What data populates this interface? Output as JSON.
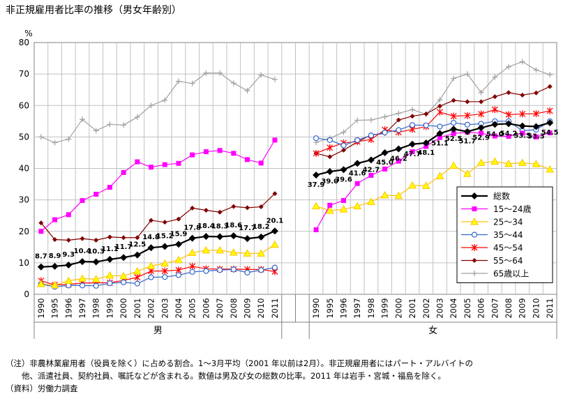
{
  "title": "非正規雇用者比率の推移（男女年齢別）",
  "notes": [
    "（注）非農林業雇用者（役員を除く）に占める割合。1～3月平均（2001 年以前は2月）。非正規雇用者にはパート・アルバイトの",
    "　　他、派遣社員、契約社員、嘱託などが含まれる。数値は男及び女の総数の比率。2011 年は岩手・宮城・福島を除く。",
    "（資料）労働力調査"
  ],
  "colors": {
    "total": "#000000",
    "a15_24": "#ff00ff",
    "a25_34": "#ffc000",
    "a35_44": "#3366cc",
    "a45_54": "#ff0000",
    "a55_64": "#800000",
    "a65": "#a0a0a0",
    "grid": "#c0c0c0"
  },
  "chart_data": {
    "type": "line",
    "ylabel": "%",
    "ylim": [
      0,
      80
    ],
    "yticks": [
      0,
      10,
      20,
      30,
      40,
      50,
      60,
      70,
      80
    ],
    "legend_position": "right",
    "groups": [
      {
        "label": "男",
        "years": [
          "1990",
          "1995",
          "1996",
          "1997",
          "1998",
          "1999",
          "2000",
          "2001",
          "2002",
          "2003",
          "2004",
          "2005",
          "2006",
          "2007",
          "2008",
          "2009",
          "2010",
          "2011"
        ],
        "series": [
          {
            "key": "total",
            "name": "総数",
            "values": [
              8.7,
              8.9,
              9.3,
              10.4,
              10.3,
              11.1,
              11.7,
              12.5,
              14.8,
              15.2,
              15.9,
              17.8,
              18.4,
              18.3,
              18.6,
              17.7,
              18.2,
              20.1
            ],
            "labels": [
              "8.7",
              "8.9",
              "9.3",
              "10.4",
              "10.3",
              "11.1",
              "11.7",
              "12.5",
              "14.8",
              "15.2",
              "15.9",
              "17.8",
              "18.4",
              "18.3",
              "18.6",
              "17.7",
              "18.2",
              "20.1"
            ]
          },
          {
            "key": "a15_24",
            "name": "15～24歳",
            "values": [
              20,
              23.7,
              25.3,
              29.8,
              31.8,
              34,
              38.7,
              42.1,
              40.4,
              41.2,
              41.6,
              44.3,
              45.3,
              45.7,
              44.8,
              42.8,
              41.7,
              49
            ]
          },
          {
            "key": "a25_34",
            "name": "25～34",
            "values": [
              3.3,
              2.9,
              4.3,
              5,
              4.8,
              6,
              5.8,
              7.3,
              9,
              9.8,
              10.9,
              13.2,
              14,
              14,
              13.3,
              13,
              13,
              15.8
            ]
          },
          {
            "key": "a35_44",
            "name": "35～44",
            "values": [
              3.2,
              2.4,
              2.8,
              2.8,
              2.7,
              3.5,
              3.8,
              3.4,
              5.4,
              5.5,
              6.1,
              7.1,
              7.4,
              7.7,
              7.9,
              6.9,
              7.7,
              8.5
            ]
          },
          {
            "key": "a45_54",
            "name": "45～54",
            "values": [
              4.3,
              3,
              3.1,
              3.6,
              3.6,
              3.7,
              4.4,
              5.4,
              7.4,
              7.4,
              7.7,
              8.9,
              8.1,
              8,
              8,
              7.9,
              7.9,
              7.2
            ]
          },
          {
            "key": "a55_64",
            "name": "55～64",
            "values": [
              22.7,
              17.4,
              17.2,
              17.7,
              17.2,
              18.2,
              18,
              18,
              23.5,
              22.9,
              23.9,
              27.4,
              26.7,
              26.1,
              27.9,
              27.5,
              27.8,
              32
            ]
          },
          {
            "key": "a65",
            "name": "65歳以上",
            "values": [
              50,
              48.2,
              49.3,
              55.6,
              52,
              54,
              53.8,
              56.3,
              60,
              61.7,
              67.7,
              67,
              70.3,
              70.3,
              67.1,
              64.7,
              69.7,
              68.3
            ]
          }
        ]
      },
      {
        "label": "女",
        "years": [
          "1990",
          "1995",
          "1996",
          "1997",
          "1998",
          "1999",
          "2000",
          "2001",
          "2002",
          "2003",
          "2004",
          "2005",
          "2006",
          "2007",
          "2008",
          "2009",
          "2010",
          "2011"
        ],
        "series": [
          {
            "key": "total",
            "name": "総数",
            "values": [
              37.9,
              39,
              39.6,
              41.6,
              42.7,
              45,
              46.2,
              47.7,
              48.1,
              51.1,
              52.5,
              51.7,
              52.9,
              54,
              54.2,
              53.5,
              53.3,
              54.5
            ],
            "labels": [
              "37.9",
              "39.0",
              "39.6",
              "41.6",
              "42.7",
              "45.0",
              "46.2",
              "47.7",
              "48.1",
              "51.1",
              "52.5",
              "51.7",
              "52.9",
              "54.0",
              "54.2",
              "53.5",
              "53.3",
              "54.5"
            ]
          },
          {
            "key": "a15_24",
            "name": "15～24歳",
            "values": [
              20.5,
              28.3,
              29.8,
              35.2,
              37.8,
              39.8,
              42.3,
              45.3,
              47,
              49.8,
              51.1,
              51.5,
              51.2,
              50.3,
              50.2,
              51.2,
              50,
              51.3
            ]
          },
          {
            "key": "a25_34",
            "name": "25～34",
            "values": [
              28,
              26.6,
              27,
              28,
              29.4,
              31.5,
              31.3,
              34.6,
              34.5,
              37.6,
              40.9,
              38.3,
              41.8,
              42.2,
              41.5,
              41.8,
              41.4,
              39.7
            ]
          },
          {
            "key": "a35_44",
            "name": "35～44",
            "values": [
              49.6,
              49,
              47.3,
              49,
              50.5,
              51.4,
              52.2,
              53.8,
              53.7,
              53.3,
              54.5,
              53.9,
              54.2,
              55,
              55,
              52,
              52.3,
              55
            ]
          },
          {
            "key": "a45_54",
            "name": "45～54",
            "values": [
              44.8,
              46.6,
              48.1,
              48.5,
              49.2,
              52.3,
              51.5,
              52.4,
              53.3,
              57.9,
              56.6,
              56.8,
              57.3,
              58.7,
              57.1,
              57.3,
              57.4,
              58.3
            ]
          },
          {
            "key": "a55_64",
            "name": "55～64",
            "values": [
              44.8,
              43.7,
              45.8,
              48.4,
              50.7,
              51.1,
              55.4,
              56.6,
              57.3,
              59.8,
              61.6,
              61.2,
              61.2,
              62.8,
              64.1,
              63.3,
              64,
              66
            ]
          },
          {
            "key": "a65",
            "name": "65歳以上",
            "values": [
              48.3,
              49.6,
              51.5,
              55.3,
              55.4,
              56.4,
              57.5,
              58.7,
              57.2,
              61.8,
              68.6,
              70,
              64.1,
              69,
              72.3,
              73.9,
              71.3,
              69.8
            ]
          }
        ]
      }
    ]
  }
}
